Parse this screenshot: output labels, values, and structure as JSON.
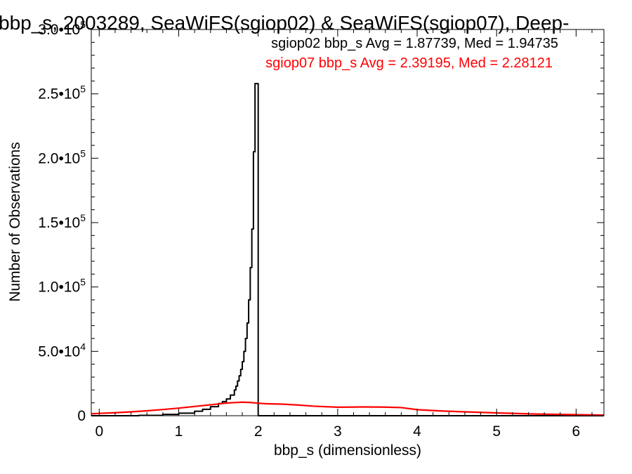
{
  "chart_data": {
    "type": "line",
    "title": "bbp_s, 2003289, SeaWiFS(sgiop02) & SeaWiFS(sgiop07), Deep-",
    "xlabel": "bbp_s (dimensionless)",
    "ylabel": "Number of Observations",
    "xlim": [
      -0.1,
      6.35
    ],
    "ylim": [
      0,
      300000
    ],
    "xticks": [
      0,
      1,
      2,
      3,
      4,
      5,
      6
    ],
    "xtick_labels": [
      "0",
      "1",
      "2",
      "3",
      "4",
      "5",
      "6"
    ],
    "yticks": [
      0,
      50000,
      100000,
      150000,
      200000,
      250000,
      300000
    ],
    "ytick_labels": [
      {
        "mant": "0",
        "exp": ""
      },
      {
        "mant": "5.0•10",
        "exp": "4"
      },
      {
        "mant": "1.0•10",
        "exp": "5"
      },
      {
        "mant": "1.5•10",
        "exp": "5"
      },
      {
        "mant": "2.0•10",
        "exp": "5"
      },
      {
        "mant": "2.5•10",
        "exp": "5"
      },
      {
        "mant": "3.0•10",
        "exp": "5"
      }
    ],
    "grid": false,
    "legend_position": "top-right",
    "annotations": [
      {
        "text": "sgiop02 bbp_s Avg = 1.87739, Med = 1.94735",
        "color": "#000000"
      },
      {
        "text": "sgiop07 bbp_s Avg = 2.39195, Med = 2.28121",
        "color": "#ff0000"
      }
    ],
    "series": [
      {
        "color": "#000000",
        "style": "step",
        "x": [
          -0.1,
          0.5,
          0.8,
          1.0,
          1.2,
          1.3,
          1.4,
          1.5,
          1.55,
          1.6,
          1.65,
          1.7,
          1.72,
          1.74,
          1.76,
          1.78,
          1.8,
          1.82,
          1.84,
          1.86,
          1.88,
          1.9,
          1.92,
          1.94,
          1.96,
          1.98,
          2.0,
          2.02,
          2.5,
          3.0,
          4.0,
          5.0,
          6.35
        ],
        "y": [
          0,
          300,
          1000,
          2000,
          3500,
          5000,
          7000,
          9500,
          11000,
          13000,
          16000,
          20000,
          23000,
          27000,
          31000,
          36000,
          42000,
          50000,
          60000,
          72000,
          90000,
          115000,
          145000,
          205000,
          258000,
          258000,
          0,
          0,
          0,
          0,
          0,
          0,
          0
        ]
      },
      {
        "color": "#ff0000",
        "style": "line",
        "x": [
          -0.1,
          0.0,
          0.2,
          0.4,
          0.6,
          0.8,
          1.0,
          1.2,
          1.4,
          1.6,
          1.7,
          1.8,
          1.9,
          2.0,
          2.1,
          2.3,
          2.5,
          2.7,
          3.0,
          3.3,
          3.6,
          3.8,
          4.0,
          4.3,
          4.6,
          5.0,
          5.5,
          6.0,
          6.35
        ],
        "y": [
          1500,
          1800,
          2300,
          3000,
          3800,
          4800,
          5900,
          7200,
          8500,
          9800,
          10200,
          10500,
          10300,
          9700,
          9300,
          9000,
          8300,
          7400,
          6600,
          6800,
          6700,
          6300,
          4700,
          3700,
          3000,
          2200,
          1300,
          800,
          500
        ]
      }
    ]
  }
}
